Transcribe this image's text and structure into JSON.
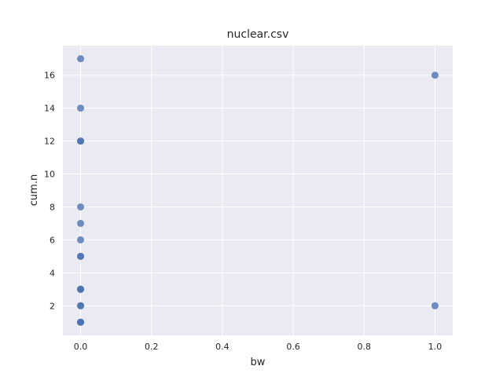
{
  "chart_data": {
    "type": "scatter",
    "title": "nuclear.csv",
    "xlabel": "bw",
    "ylabel": "cum.n",
    "xlim": [
      -0.05,
      1.05
    ],
    "ylim": [
      0.2,
      17.8
    ],
    "xticks": [
      0.0,
      0.2,
      0.4,
      0.6,
      0.8,
      1.0
    ],
    "xtick_labels": [
      "0.0",
      "0.2",
      "0.4",
      "0.6",
      "0.8",
      "1.0"
    ],
    "yticks": [
      2,
      4,
      6,
      8,
      10,
      12,
      14,
      16
    ],
    "ytick_labels": [
      "2",
      "4",
      "6",
      "8",
      "10",
      "12",
      "14",
      "16"
    ],
    "grid": true,
    "colors": {
      "background": "#eaeaf2",
      "grid": "#ffffff",
      "marker": "#4c72b0"
    },
    "points": [
      {
        "x": 0,
        "y": 17
      },
      {
        "x": 0,
        "y": 14
      },
      {
        "x": 0,
        "y": 12
      },
      {
        "x": 0,
        "y": 12
      },
      {
        "x": 0,
        "y": 8
      },
      {
        "x": 0,
        "y": 7
      },
      {
        "x": 0,
        "y": 6
      },
      {
        "x": 0,
        "y": 5
      },
      {
        "x": 0,
        "y": 5
      },
      {
        "x": 0,
        "y": 3
      },
      {
        "x": 0,
        "y": 3
      },
      {
        "x": 0,
        "y": 3
      },
      {
        "x": 0,
        "y": 2
      },
      {
        "x": 0,
        "y": 2
      },
      {
        "x": 0,
        "y": 1
      },
      {
        "x": 0,
        "y": 1
      },
      {
        "x": 0,
        "y": 1
      },
      {
        "x": 1,
        "y": 16
      },
      {
        "x": 1,
        "y": 2
      }
    ]
  }
}
